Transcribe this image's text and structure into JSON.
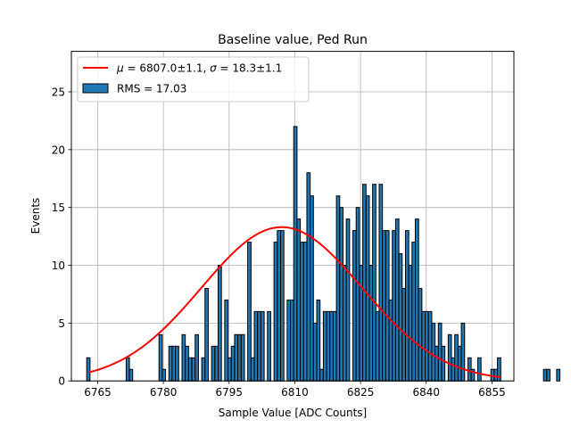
{
  "chart_data": {
    "type": "bar",
    "title": "Baseline value, Ped Run",
    "xlabel": "Sample Value [ADC Counts]",
    "ylabel": "Events",
    "xlim": [
      6759,
      6860
    ],
    "ylim": [
      0,
      28.5
    ],
    "xticks": [
      6765,
      6780,
      6795,
      6810,
      6825,
      6840,
      6855
    ],
    "yticks": [
      0,
      5,
      10,
      15,
      20,
      25
    ],
    "grid": true,
    "legend_position": "top-left",
    "bin_start": 6762.5,
    "bin_width": 0.75,
    "counts": [
      2,
      0,
      0,
      0,
      0,
      0,
      0,
      0,
      0,
      0,
      0,
      0,
      2,
      1,
      0,
      0,
      0,
      0,
      0,
      0,
      0,
      0,
      4,
      1,
      0,
      3,
      3,
      3,
      0,
      4,
      3,
      2,
      2,
      4,
      0,
      2,
      8,
      0,
      3,
      3,
      10,
      0,
      7,
      2,
      3,
      4,
      4,
      4,
      0,
      12,
      2,
      6,
      6,
      6,
      0,
      6,
      0,
      12,
      13,
      13,
      0,
      7,
      7,
      22,
      14,
      12,
      12,
      18,
      16,
      5,
      7,
      1,
      6,
      6,
      6,
      6,
      16,
      15,
      10,
      14,
      0,
      13,
      15,
      10,
      17,
      16,
      10,
      17,
      6,
      17,
      13,
      13,
      7,
      13,
      14,
      11,
      8,
      13,
      10,
      12,
      14,
      8,
      6,
      6,
      6,
      5,
      3,
      5,
      3,
      0,
      4,
      2,
      4,
      3,
      5,
      0,
      2,
      1,
      0,
      2,
      0,
      0,
      0,
      1,
      1,
      2,
      0,
      0,
      0,
      0,
      0,
      0,
      0,
      0,
      0,
      0,
      0,
      0,
      0,
      1,
      1,
      0,
      0,
      1
    ],
    "series": [
      {
        "name": "RMS = 17.03",
        "kind": "histogram",
        "color": "#1f77b4",
        "edge_color": "#000000"
      },
      {
        "name": "$\\mu = 6807.0\\pm1.1$, $\\sigma = 18.3\\pm1.1$",
        "label_parts": {
          "mu_symbol": "μ",
          "mu_text": " = 6807.0±1.1, ",
          "sigma_symbol": "σ",
          "sigma_text": " = 18.3±1.1"
        },
        "kind": "gaussian-fit",
        "color": "#ff0000",
        "mu": 6807.0,
        "sigma": 18.3,
        "amplitude": 13.3,
        "x_range": [
          6763,
          6857
        ]
      }
    ]
  }
}
